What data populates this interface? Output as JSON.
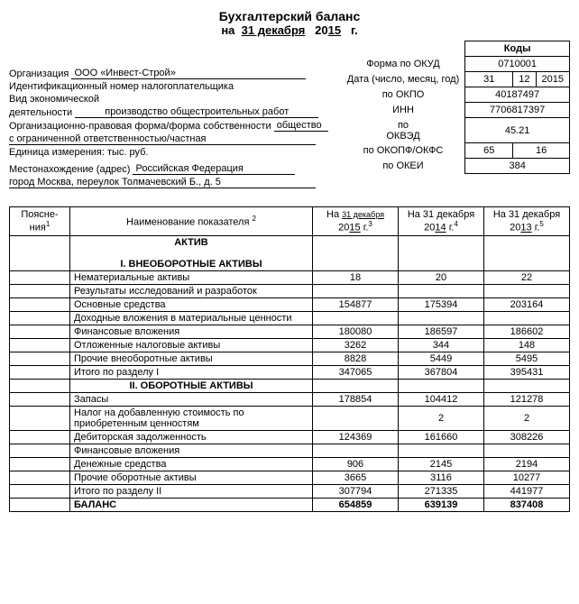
{
  "title": {
    "heading": "Бухгалтерский баланс",
    "on": "на",
    "day_month": "31 декабря",
    "year_prefix": "20",
    "year_suffix": "15",
    "year_g": "г."
  },
  "codes_header": "Коды",
  "info": {
    "form_okud_label": "Форма по ОКУД",
    "form_okud": "0710001",
    "date_label": "Дата (число, месяц, год)",
    "date_d": "31",
    "date_m": "12",
    "date_y": "2015",
    "org_label": "Организация",
    "org_value": "ООО «Инвест-Строй»",
    "okpo_label": "по ОКПО",
    "okpo": "40187497",
    "inn_label": "Идентификационный номер налогоплательщика",
    "inn_code_label": "ИНН",
    "inn": "7706817397",
    "activity_label_1": "Вид экономической",
    "activity_label_2": "деятельности",
    "activity_value": "производство общестроительных работ",
    "okved_label": "ОКВЭД",
    "okved": "45.21",
    "po": "по",
    "opf_label": "Организационно-правовая форма/форма собственности",
    "opf_value": "общество",
    "opf_line2": "с ограниченной ответственностью/частная",
    "okopf_label": "по ОКОПФ/ОКФС",
    "okopf_1": "65",
    "okopf_2": "16",
    "unit_label": "Единица измерения: тыс. руб.",
    "okei_label": "по ОКЕИ",
    "okei": "384",
    "addr_label": "Местонахождение (адрес)",
    "addr_value": "Российская Федерация",
    "addr_line2": "город Москва, переулок Толмачевский Б., д. 5"
  },
  "table": {
    "headers": {
      "poyas": "Поясне-\nния",
      "poyas_sup": "1",
      "name": "Наименование показателя",
      "name_sup": "2",
      "col3_a": "На",
      "col3_b": "31 декабря",
      "col3_c": "20",
      "col3_d": "15",
      "col3_e": "г.",
      "col3_sup": "3",
      "col4_a": "На 31 декабря",
      "col4_c": "20",
      "col4_d": "14",
      "col4_e": "г.",
      "col4_sup": "4",
      "col5_a": "На 31 декабря",
      "col5_c": "20",
      "col5_d": "13",
      "col5_e": "г.",
      "col5_sup": "5"
    },
    "section_aktiv": "АКТИВ",
    "section1": "I. ВНЕОБОРОТНЫЕ АКТИВЫ",
    "rows1": [
      {
        "name": "Нематериальные активы",
        "v1": "18",
        "v2": "20",
        "v3": "22"
      },
      {
        "name": "Результаты исследований и разработок",
        "v1": "",
        "v2": "",
        "v3": ""
      },
      {
        "name": "Основные средства",
        "v1": "154877",
        "v2": "175394",
        "v3": "203164"
      },
      {
        "name": "Доходные вложения в материальные ценности",
        "v1": "",
        "v2": "",
        "v3": ""
      },
      {
        "name": "Финансовые вложения",
        "v1": "180080",
        "v2": "186597",
        "v3": "186602"
      },
      {
        "name": "Отложенные налоговые активы",
        "v1": "3262",
        "v2": "344",
        "v3": "148"
      },
      {
        "name": "Прочие внеоборотные активы",
        "v1": "8828",
        "v2": "5449",
        "v3": "5495"
      },
      {
        "name": "Итого по разделу I",
        "v1": "347065",
        "v2": "367804",
        "v3": "395431"
      }
    ],
    "section2": "II. ОБОРОТНЫЕ АКТИВЫ",
    "rows2": [
      {
        "name": "Запасы",
        "v1": "178854",
        "v2": "104412",
        "v3": "121278"
      },
      {
        "name": "Налог на добавленную стоимость по приобретенным ценностям",
        "v1": "",
        "v2": "2",
        "v3": "2"
      },
      {
        "name": "Дебиторская задолженность",
        "v1": "124369",
        "v2": "161660",
        "v3": "308226"
      },
      {
        "name": "Финансовые вложения",
        "v1": "",
        "v2": "",
        "v3": ""
      },
      {
        "name": "Денежные средства",
        "v1": "906",
        "v2": "2145",
        "v3": "2194"
      },
      {
        "name": "Прочие оборотные активы",
        "v1": "3665",
        "v2": "3116",
        "v3": "10277"
      },
      {
        "name": "Итого по разделу II",
        "v1": "307794",
        "v2": "271335",
        "v3": "441977"
      }
    ],
    "balance": {
      "name": "БАЛАНС",
      "v1": "654859",
      "v2": "639139",
      "v3": "837408"
    }
  }
}
